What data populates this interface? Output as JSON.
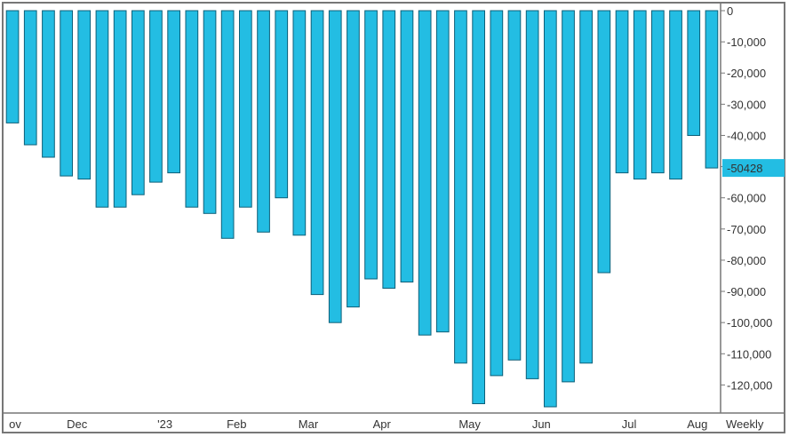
{
  "chart_data": {
    "type": "bar",
    "series": [
      {
        "values": [
          -36000,
          -43000,
          -47000,
          -53000,
          -54000,
          -63000,
          -63000,
          -59000,
          -55000,
          -52000,
          -63000,
          -65000,
          -73000,
          -63000,
          -71000,
          -60000,
          -72000,
          -91000,
          -100000,
          -95000,
          -86000,
          -89000,
          -87000,
          -104000,
          -103000,
          -113000,
          -126000,
          -117000,
          -112000,
          -118000,
          -127000,
          -119000,
          -113000,
          -84000,
          -52000,
          -54000,
          -52000,
          -54000,
          -40000,
          -50428
        ]
      }
    ],
    "x_tick_labels": [
      "ov",
      "Dec",
      "'23",
      "Feb",
      "Mar",
      "Apr",
      "May",
      "Jun",
      "Jul",
      "Aug"
    ],
    "x_tick_positions": [
      -0.2,
      3.6,
      8.5,
      12.5,
      16.5,
      20.6,
      25.5,
      29.5,
      34.4,
      38.2
    ],
    "y_ticks": [
      0,
      -10000,
      -20000,
      -30000,
      -40000,
      -50000,
      -60000,
      -70000,
      -80000,
      -90000,
      -100000,
      -110000,
      -120000
    ],
    "y_tick_labels": [
      "0",
      "-10,000",
      "-20,000",
      "-30,000",
      "-40,000",
      "-50,000",
      "-60,000",
      "-70,000",
      "-80,000",
      "-90,000",
      "-100,000",
      "-110,000",
      "-120,000"
    ],
    "ylim": [
      -129000,
      0
    ],
    "last_value_label": "-50428",
    "period_label": "Weekly",
    "grid": false,
    "colors": {
      "bar_fill": "#23bde3",
      "bar_edge": "#0d5f78",
      "last_value_bg": "#23bde3",
      "frame": "#777777"
    }
  }
}
